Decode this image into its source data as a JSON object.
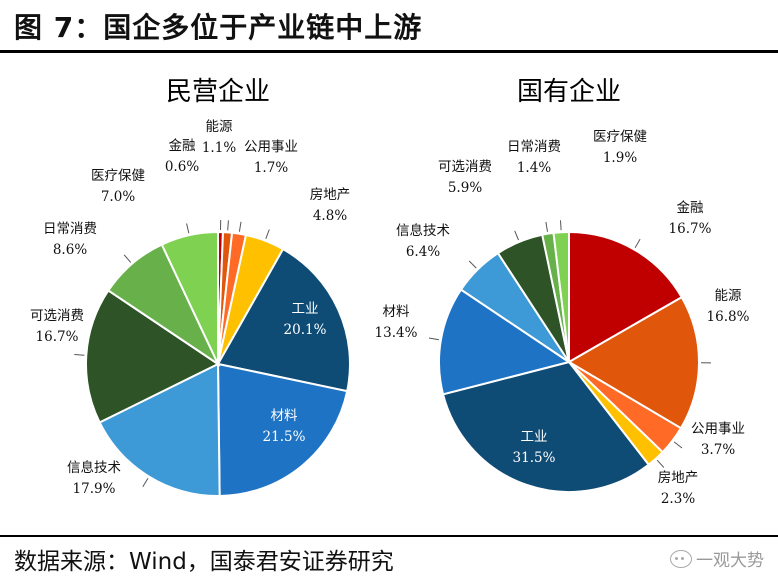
{
  "figure": {
    "title": "图 7：国企多位于产业链中上游",
    "source": "数据来源：Wind，国泰君安证券研究",
    "watermark": "一观大势"
  },
  "colors": {
    "金融": "#c00000",
    "能源": "#e0560b",
    "公用事业": "#ff6a26",
    "房地产": "#ffc000",
    "工业": "#0f4c75",
    "材料": "#1f73c4",
    "信息技术": "#3e9ad6",
    "可选消费": "#2d5327",
    "日常消费": "#67b04a",
    "医疗保健": "#7fd152"
  },
  "chart_data": [
    {
      "type": "pie",
      "title": "民营企业",
      "slices": [
        {
          "label": "金融",
          "value": 0.6,
          "value_text": "0.6%"
        },
        {
          "label": "能源",
          "value": 1.1,
          "value_text": "1.1%"
        },
        {
          "label": "公用事业",
          "value": 1.7,
          "value_text": "1.7%"
        },
        {
          "label": "房地产",
          "value": 4.8,
          "value_text": "4.8%"
        },
        {
          "label": "工业",
          "value": 20.1,
          "value_text": "20.1%"
        },
        {
          "label": "材料",
          "value": 21.5,
          "value_text": "21.5%"
        },
        {
          "label": "信息技术",
          "value": 17.9,
          "value_text": "17.9%"
        },
        {
          "label": "可选消费",
          "value": 16.7,
          "value_text": "16.7%"
        },
        {
          "label": "日常消费",
          "value": 8.6,
          "value_text": "8.6%"
        },
        {
          "label": "医疗保健",
          "value": 7.0,
          "value_text": "7.0%"
        }
      ]
    },
    {
      "type": "pie",
      "title": "国有企业",
      "slices": [
        {
          "label": "金融",
          "value": 16.7,
          "value_text": "16.7%"
        },
        {
          "label": "能源",
          "value": 16.8,
          "value_text": "16.8%"
        },
        {
          "label": "公用事业",
          "value": 3.7,
          "value_text": "3.7%"
        },
        {
          "label": "房地产",
          "value": 2.3,
          "value_text": "2.3%"
        },
        {
          "label": "工业",
          "value": 31.5,
          "value_text": "31.5%"
        },
        {
          "label": "材料",
          "value": 13.4,
          "value_text": "13.4%"
        },
        {
          "label": "信息技术",
          "value": 6.4,
          "value_text": "6.4%"
        },
        {
          "label": "可选消费",
          "value": 5.9,
          "value_text": "5.9%"
        },
        {
          "label": "日常消费",
          "value": 1.4,
          "value_text": "1.4%"
        },
        {
          "label": "医疗保健",
          "value": 1.9,
          "value_text": "1.9%"
        }
      ]
    }
  ]
}
